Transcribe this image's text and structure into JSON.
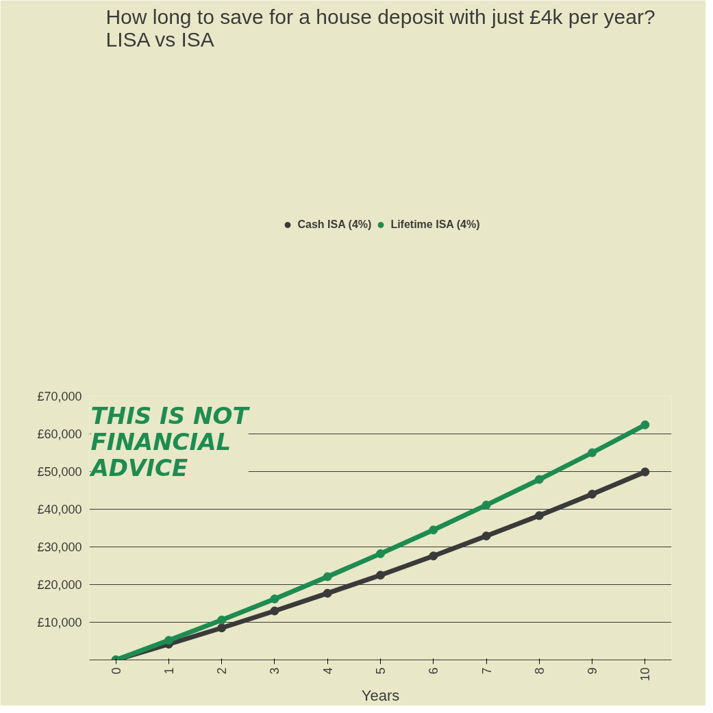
{
  "chart_data": {
    "type": "line",
    "title": "How long to save for a house deposit with just £4k per year?\nLISA vs ISA",
    "xlabel": "Years",
    "x": [
      0,
      1,
      2,
      3,
      4,
      5,
      6,
      7,
      8,
      9,
      10
    ],
    "series": [
      {
        "name": "Cash ISA (4%)",
        "color": "#3a3a3a",
        "values": [
          0,
          4200,
          8500,
          13000,
          17700,
          22500,
          27600,
          32900,
          38300,
          44000,
          49900
        ]
      },
      {
        "name": "Lifetime ISA (4%)",
        "color": "#1e8c50",
        "values": [
          0,
          5200,
          10600,
          16200,
          22100,
          28200,
          34500,
          41100,
          47900,
          55000,
          62400
        ]
      }
    ],
    "xlim": [
      -0.5,
      10.5
    ],
    "xticks": [
      0,
      1,
      2,
      3,
      4,
      5,
      6,
      7,
      8,
      9,
      10
    ],
    "ylim": [
      0,
      70000
    ],
    "yticks": [
      {
        "value": 10000,
        "label": "£10,000"
      },
      {
        "value": 20000,
        "label": "£20,000"
      },
      {
        "value": 30000,
        "label": "£30,000"
      },
      {
        "value": 40000,
        "label": "£40,000"
      },
      {
        "value": 50000,
        "label": "£50,000"
      },
      {
        "value": 60000,
        "label": "£60,000"
      },
      {
        "value": 70000,
        "label": "£70,000"
      }
    ],
    "grid": "y",
    "legend": "top",
    "marker": "circle",
    "line_style": "solid",
    "annotations": [
      "THIS IS NOT\nFINANCIAL\nADVICE"
    ]
  }
}
